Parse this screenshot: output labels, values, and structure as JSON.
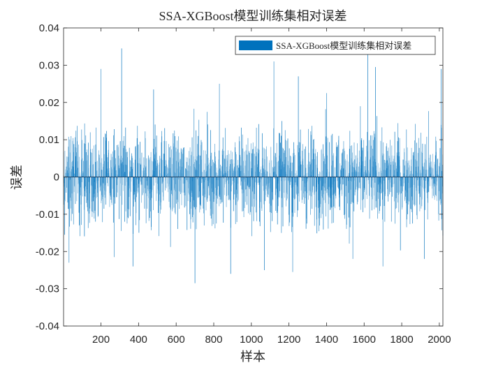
{
  "chart_data": {
    "type": "bar",
    "title": "SSA-XGBoost模型训练集相对误差",
    "xlabel": "样本",
    "ylabel": "误差",
    "xlim": [
      1,
      2019
    ],
    "ylim": [
      -0.04,
      0.04
    ],
    "x_ticks": [
      200,
      400,
      600,
      800,
      1000,
      1200,
      1400,
      1600,
      1800,
      2000
    ],
    "x_tick_labels": [
      "200",
      "400",
      "600",
      "800",
      "1000",
      "1200",
      "1400",
      "1600",
      "1800",
      "2000"
    ],
    "y_ticks": [
      -0.04,
      -0.03,
      -0.02,
      -0.01,
      0,
      0.01,
      0.02,
      0.03,
      0.04
    ],
    "y_tick_labels": [
      "-0.04",
      "-0.03",
      "-0.02",
      "-0.01",
      "0",
      "0.01",
      "0.02",
      "0.03",
      "0.04"
    ],
    "grid": false,
    "legend_position": "top-right",
    "series": [
      {
        "name": "SSA-XGBoost模型训练集相对误差",
        "color": "#0072BD",
        "n_samples": 2019,
        "envelope_note": "values are approximately within the range shown; highlights list the most prominent spikes",
        "highlights": [
          {
            "x": 310,
            "y": 0.0345
          },
          {
            "x": 200,
            "y": 0.029
          },
          {
            "x": 1120,
            "y": 0.031
          },
          {
            "x": 1620,
            "y": 0.033
          },
          {
            "x": 1660,
            "y": 0.0295
          },
          {
            "x": 2010,
            "y": 0.029
          },
          {
            "x": 480,
            "y": 0.0235
          },
          {
            "x": 830,
            "y": 0.025
          },
          {
            "x": 1250,
            "y": 0.027
          },
          {
            "x": 1400,
            "y": 0.0225
          },
          {
            "x": 700,
            "y": -0.0285
          },
          {
            "x": 890,
            "y": -0.026
          },
          {
            "x": 1070,
            "y": -0.025
          },
          {
            "x": 1220,
            "y": -0.0255
          },
          {
            "x": 1700,
            "y": -0.024
          },
          {
            "x": 370,
            "y": -0.024
          },
          {
            "x": 30,
            "y": -0.023
          },
          {
            "x": 270,
            "y": -0.0215
          },
          {
            "x": 1540,
            "y": -0.022
          },
          {
            "x": 1920,
            "y": -0.022
          }
        ]
      }
    ]
  }
}
